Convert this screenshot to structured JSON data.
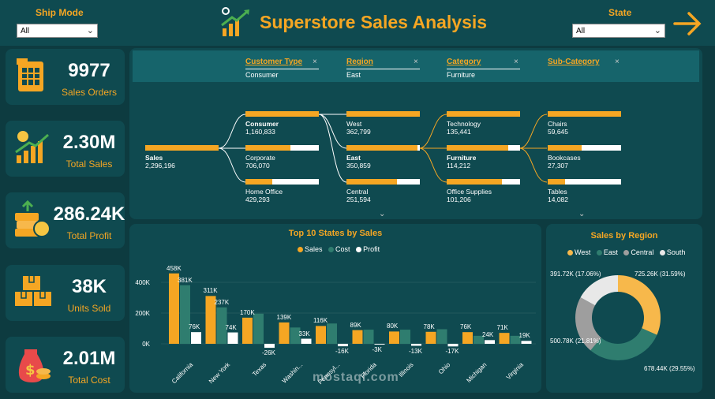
{
  "header": {
    "title": "Superstore Sales Analysis",
    "ship_mode_label": "Ship Mode",
    "ship_mode_value": "All",
    "state_label": "State",
    "state_value": "All"
  },
  "kpis": [
    {
      "value": "9977",
      "label": "Sales Orders"
    },
    {
      "value": "2.30M",
      "label": "Total Sales"
    },
    {
      "value": "286.24K",
      "label": "Total Profit"
    },
    {
      "value": "38K",
      "label": "Units Sold"
    },
    {
      "value": "2.01M",
      "label": "Total Cost"
    }
  ],
  "tree": {
    "levels": [
      {
        "name": "Customer Type",
        "selected": "Consumer"
      },
      {
        "name": "Region",
        "selected": "East"
      },
      {
        "name": "Category",
        "selected": "Furniture"
      },
      {
        "name": "Sub-Category",
        "selected": ""
      }
    ],
    "root": {
      "label": "Sales",
      "value": "2,296,196"
    },
    "col1": [
      {
        "label": "Consumer",
        "value": "1,160,833",
        "fill": 1.0,
        "bold": true
      },
      {
        "label": "Corporate",
        "value": "706,070",
        "fill": 0.61
      },
      {
        "label": "Home Office",
        "value": "429,293",
        "fill": 0.37
      }
    ],
    "col2": [
      {
        "label": "West",
        "value": "362,799",
        "fill": 1.0
      },
      {
        "label": "East",
        "value": "350,859",
        "fill": 0.97,
        "bold": true
      },
      {
        "label": "Central",
        "value": "251,594",
        "fill": 0.69
      }
    ],
    "col3": [
      {
        "label": "Technology",
        "value": "135,441",
        "fill": 1.0
      },
      {
        "label": "Furniture",
        "value": "114,212",
        "fill": 0.84,
        "bold": true
      },
      {
        "label": "Office Supplies",
        "value": "101,206",
        "fill": 0.75
      }
    ],
    "col4": [
      {
        "label": "Chairs",
        "value": "59,645",
        "fill": 1.0
      },
      {
        "label": "Bookcases",
        "value": "27,307",
        "fill": 0.46
      },
      {
        "label": "Tables",
        "value": "14,082",
        "fill": 0.24
      }
    ]
  },
  "bar_chart": {
    "title": "Top 10 States by Sales",
    "legend": [
      "Sales",
      "Cost",
      "Profit"
    ],
    "colors": {
      "sales": "#f5a623",
      "cost": "#2f7d6f",
      "profit": "#ffffff"
    },
    "yticks": [
      "400K",
      "200K",
      "0K"
    ]
  },
  "chart_data": [
    {
      "type": "bar",
      "title": "Top 10 States by Sales",
      "categories": [
        "California",
        "New York",
        "Texas",
        "Washin...",
        "Pennsyl...",
        "Florida",
        "Illinois",
        "Ohio",
        "Michigan",
        "Virginia"
      ],
      "series": [
        {
          "name": "Sales",
          "values": [
            458,
            311,
            170,
            139,
            116,
            89,
            80,
            78,
            76,
            71
          ],
          "labels": [
            "458K",
            "311K",
            "170K",
            "139K",
            "116K",
            "89K",
            "80K",
            "78K",
            "76K",
            "71K"
          ]
        },
        {
          "name": "Cost",
          "values": [
            381,
            237,
            196,
            106,
            132,
            92,
            92,
            95,
            52,
            52
          ],
          "labels": [
            "381K",
            "237K",
            "",
            "",
            "",
            "",
            "",
            "",
            "",
            ""
          ]
        },
        {
          "name": "Profit",
          "values": [
            76,
            74,
            -26,
            33,
            -16,
            -3,
            -13,
            -17,
            24,
            19
          ],
          "labels": [
            "76K",
            "74K",
            "-26K",
            "33K",
            "-16K",
            "-3K",
            "-13K",
            "-17K",
            "24K",
            "19K"
          ]
        }
      ],
      "ylim": [
        -40,
        480
      ],
      "yticks": [
        0,
        200,
        400
      ]
    },
    {
      "type": "pie",
      "title": "Sales by Region",
      "categories": [
        "West",
        "East",
        "Central",
        "South"
      ],
      "values": [
        725.26,
        678.44,
        500.78,
        391.72
      ],
      "labels": [
        "725.26K (31.59%)",
        "678.44K (29.55%)",
        "500.78K (21.81%)",
        "391.72K (17.06%)"
      ],
      "colors": [
        "#f7b84b",
        "#2f7d6f",
        "#9e9e9e",
        "#e8e8e8"
      ]
    }
  ],
  "donut": {
    "title": "Sales by Region",
    "legend": [
      "West",
      "East",
      "Central",
      "South"
    ]
  },
  "watermark": "mostaql.com"
}
